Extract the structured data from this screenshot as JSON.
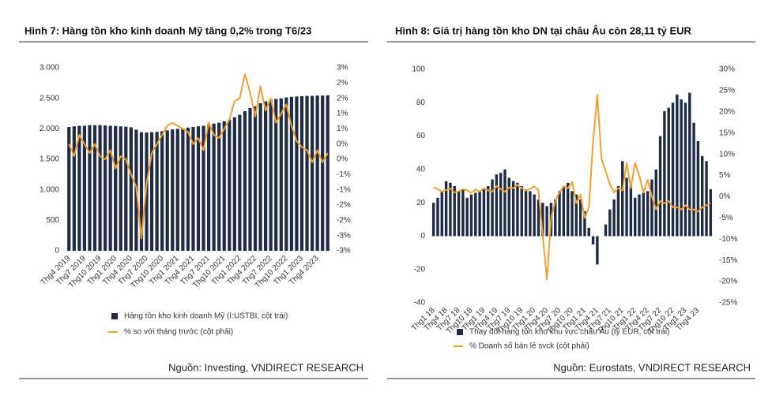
{
  "chart_data": [
    {
      "type": "bar-line",
      "title": "Hình 7: Hàng tồn kho kinh doanh Mỹ tăng 0,2% trong T6/23",
      "source": "Nguồn: Investing, VNDIRECT RESEARCH",
      "categories": [
        "Thg4 2019",
        null,
        null,
        "Thg7 2019",
        null,
        null,
        "Thg10 2019",
        null,
        null,
        "Thg1 2020",
        null,
        null,
        "Thg4 2020",
        null,
        null,
        "Thg7 2020",
        null,
        null,
        "Thg10 2020",
        null,
        null,
        "Thg1 2021",
        null,
        null,
        "Thg4 2021",
        null,
        null,
        "Thg7 2021",
        null,
        null,
        "Thg10 2021",
        null,
        null,
        "Thg1 2022",
        null,
        null,
        "Thg4 2022",
        null,
        null,
        "Thg7 2022",
        null,
        null,
        "Thg10 2022",
        null,
        null,
        "Thg1 2023",
        null,
        null,
        "Thg4 2023",
        null,
        null
      ],
      "series": [
        {
          "name": "Hàng tồn kho kinh doanh Mỹ (I:USTBI, cột trái)",
          "color": "#1f2a44",
          "kind": "bar",
          "values": [
            2030,
            2040,
            2050,
            2050,
            2060,
            2060,
            2060,
            2055,
            2050,
            2045,
            2040,
            2035,
            2025,
            1985,
            1945,
            1940,
            1945,
            1950,
            1960,
            1975,
            1990,
            2000,
            2010,
            2020,
            2030,
            2040,
            2050,
            2070,
            2085,
            2100,
            2125,
            2150,
            2190,
            2230,
            2290,
            2340,
            2370,
            2420,
            2450,
            2480,
            2490,
            2500,
            2515,
            2525,
            2530,
            2535,
            2540,
            2540,
            2545,
            2545,
            2550
          ]
        },
        {
          "name": "% so với tháng trước (cột phải)",
          "color": "#f0a030",
          "kind": "line",
          "axis": "y2",
          "values": [
            0.5,
            0.1,
            0.8,
            0.5,
            0.2,
            0.5,
            0.1,
            0.0,
            0.3,
            -0.3,
            0.1,
            0.0,
            -0.5,
            -0.9,
            -2.6,
            -0.8,
            0.2,
            0.5,
            0.8,
            1.1,
            1.2,
            1.1,
            1.0,
            0.9,
            0.5,
            0.7,
            0.3,
            1.2,
            0.8,
            0.7,
            1.0,
            1.3,
            1.9,
            2.0,
            2.8,
            2.2,
            1.4,
            2.4,
            1.6,
            2.0,
            1.2,
            1.5,
            1.8,
            1.1,
            0.6,
            0.4,
            0.3,
            -0.1,
            0.3,
            -0.1,
            0.2
          ]
        }
      ],
      "ylim": [
        0,
        3000
      ],
      "yticks": [
        0,
        500,
        {
          "value": 1000,
          "label": "1.000"
        },
        {
          "value": 1500,
          "label": "1.500"
        },
        {
          "value": 2000,
          "label": "2.000"
        },
        {
          "value": 2500,
          "label": "2.500"
        },
        {
          "value": 3000,
          "label": "3.000"
        }
      ],
      "y2lim": [
        -3,
        3
      ],
      "y2ticks": [
        {
          "value": -3,
          "label": "-3%"
        },
        {
          "value": -2.5,
          "label": "-3%"
        },
        {
          "value": -2,
          "label": "-2%"
        },
        {
          "value": -1.5,
          "label": "-2%"
        },
        {
          "value": -1,
          "label": "-1%"
        },
        {
          "value": -0.5,
          "label": "-1%"
        },
        {
          "value": 0,
          "label": "0%"
        },
        {
          "value": 0.5,
          "label": "0%"
        },
        {
          "value": 1,
          "label": "1%"
        },
        {
          "value": 1.5,
          "label": "1%"
        },
        {
          "value": 2,
          "label": "2%"
        },
        {
          "value": 2.5,
          "label": "2%"
        },
        {
          "value": 3,
          "label": "3%"
        }
      ],
      "grid": false
    },
    {
      "type": "bar-line",
      "title": "Hình 8: Giá trị hàng tồn kho DN tại châu Âu còn 28,11 tỷ EUR",
      "source": "Nguồn: Eurostats, VNDIRECT RESEARCH",
      "categories": [
        "Thg1 18",
        null,
        null,
        "Thg4 18",
        null,
        null,
        "Thg7 18",
        null,
        null,
        "Thg10 18",
        null,
        null,
        "Thg1 19",
        null,
        null,
        "Thg4 19",
        null,
        null,
        "Thg7 19",
        null,
        null,
        "Thg10 19",
        null,
        null,
        "Thg1 20",
        null,
        null,
        "Thg4 20",
        null,
        null,
        "Thg7 20",
        null,
        null,
        "Thg10 20",
        null,
        null,
        "Thg1 21",
        null,
        null,
        "Thg4 21",
        null,
        null,
        "Thg7 21",
        null,
        null,
        "Thg10 21",
        null,
        null,
        "Thg1 22",
        null,
        null,
        "Thg4 22",
        null,
        null,
        "Thg7 22",
        null,
        null,
        "Thg10 22",
        null,
        null,
        "Thg1 23",
        null,
        null,
        "Thg4 23",
        null,
        null,
        null
      ],
      "series": [
        {
          "name": "Thay đổi hàng tồn kho khu vực châu Âu (tỷ EUR, cột trái)",
          "color": "#1f2a44",
          "kind": "bar",
          "values": [
            20,
            23,
            27,
            33,
            32,
            30,
            27,
            28,
            23,
            25,
            26,
            27,
            28,
            30,
            34,
            37,
            38,
            40,
            35,
            33,
            32,
            30,
            28,
            27,
            25,
            22,
            20,
            18,
            20,
            22,
            27,
            30,
            32,
            27,
            25,
            22,
            15,
            5,
            -5,
            -17,
            0,
            7,
            16,
            22,
            30,
            45,
            35,
            30,
            23,
            25,
            26,
            27,
            34,
            40,
            60,
            75,
            77,
            80,
            85,
            82,
            80,
            86,
            68,
            57,
            48,
            45,
            28.11
          ]
        },
        {
          "name": "% Doanh số bán lẻ svck (cột phải)",
          "color": "#f0a030",
          "kind": "line",
          "axis": "y2",
          "values": [
            2.3,
            1.8,
            1.2,
            1.6,
            1.9,
            1.0,
            1.3,
            1.8,
            1.5,
            0.9,
            1.7,
            1.2,
            2.0,
            1.5,
            1.2,
            2.5,
            1.8,
            1.2,
            2.2,
            2.0,
            2.8,
            2.0,
            1.5,
            1.8,
            2.5,
            1.5,
            -9.0,
            -19.5,
            -5.0,
            -1.0,
            1.0,
            2.5,
            2.0,
            3.5,
            -1.5,
            0.5,
            -5.0,
            -2.5,
            13.0,
            24.0,
            9.0,
            6.0,
            3.0,
            1.0,
            2.0,
            1.5,
            8.0,
            2.0,
            8.0,
            5.0,
            1.0,
            4.0,
            0.0,
            -3.0,
            -1.0,
            -1.5,
            -1.0,
            -2.5,
            -2.5,
            -3.0,
            -2.0,
            -3.0,
            -3.0,
            -3.5,
            -2.5,
            -2.0,
            -1.5
          ]
        }
      ],
      "ylim": [
        -40,
        100
      ],
      "yticks": [
        -40,
        -20,
        0,
        20,
        40,
        60,
        80,
        100
      ],
      "y2lim": [
        -25,
        30
      ],
      "y2ticks": [
        {
          "value": -25,
          "label": "-25%"
        },
        {
          "value": -20,
          "label": "-20%"
        },
        {
          "value": -15,
          "label": "-15%"
        },
        {
          "value": -10,
          "label": "-10%"
        },
        {
          "value": -5,
          "label": "-5%"
        },
        {
          "value": 0,
          "label": "0%"
        },
        {
          "value": 5,
          "label": "5%"
        },
        {
          "value": 10,
          "label": "10%"
        },
        {
          "value": 15,
          "label": "15%"
        },
        {
          "value": 20,
          "label": "20%"
        },
        {
          "value": 25,
          "label": "25%"
        },
        {
          "value": 30,
          "label": "30%"
        }
      ],
      "grid": false
    }
  ]
}
